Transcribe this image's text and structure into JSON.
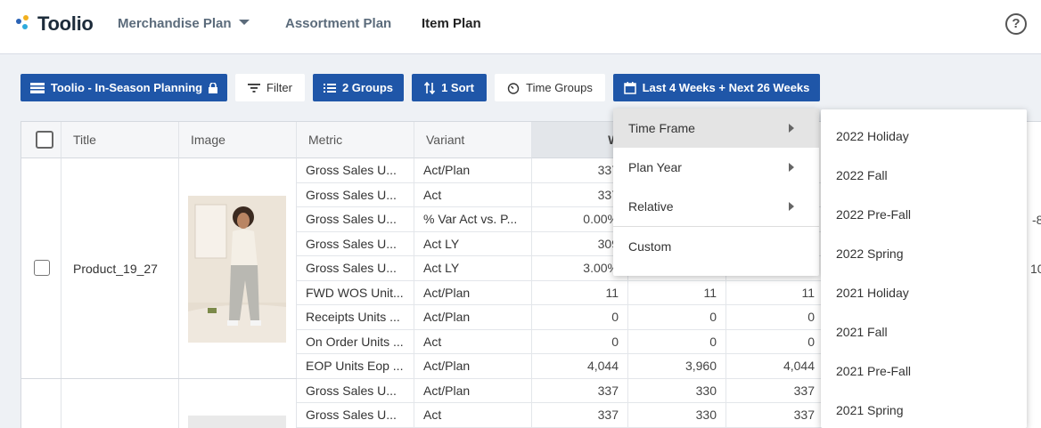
{
  "app": {
    "logo_text": "Toolio"
  },
  "nav": {
    "merchandise": "Merchandise Plan",
    "assortment": "Assortment Plan",
    "item": "Item Plan",
    "help": "?"
  },
  "toolbar": {
    "plan": "Toolio - In-Season Planning",
    "filter": "Filter",
    "groups": "2 Groups",
    "sort": "1 Sort",
    "time_groups": "Time Groups",
    "range": "Last 4 Weeks + Next 26 Weeks"
  },
  "grid": {
    "headers": {
      "title": "Title",
      "image": "Image",
      "metric": "Metric",
      "variant": "Variant",
      "week": "W10"
    },
    "product_title": "Product_19_27",
    "rows": [
      {
        "metric": "Gross Sales U...",
        "variant": "Act/Plan",
        "v1": "337",
        "v2": "",
        "v3": ""
      },
      {
        "metric": "Gross Sales U...",
        "variant": "Act",
        "v1": "337",
        "v2": "",
        "v3": ""
      },
      {
        "metric": "Gross Sales U...",
        "variant": "% Var Act vs. P...",
        "v1": "0.00%",
        "v2": "",
        "v3": ""
      },
      {
        "metric": "Gross Sales U...",
        "variant": "Act LY",
        "v1": "309",
        "v2": "",
        "v3": ""
      },
      {
        "metric": "Gross Sales U...",
        "variant": "Act LY",
        "v1": "3.00%",
        "v2": "",
        "v3": ""
      },
      {
        "metric": "FWD WOS Unit...",
        "variant": "Act/Plan",
        "v1": "11",
        "v2": "11",
        "v3": "11"
      },
      {
        "metric": "Receipts Units ...",
        "variant": "Act/Plan",
        "v1": "0",
        "v2": "0",
        "v3": "0"
      },
      {
        "metric": "On Order Units ...",
        "variant": "Act",
        "v1": "0",
        "v2": "0",
        "v3": "0"
      },
      {
        "metric": "EOP Units Eop ...",
        "variant": "Act/Plan",
        "v1": "4,044",
        "v2": "3,960",
        "v3": "4,044"
      },
      {
        "metric": "Gross Sales U...",
        "variant": "Act/Plan",
        "v1": "337",
        "v2": "330",
        "v3": "337"
      },
      {
        "metric": "Gross Sales U...",
        "variant": "Act",
        "v1": "337",
        "v2": "330",
        "v3": "337"
      }
    ],
    "edge_values": [
      "-8",
      "10"
    ]
  },
  "menu": {
    "items": [
      "Time Frame",
      "Plan Year",
      "Relative",
      "Custom"
    ]
  },
  "submenu": {
    "items": [
      "2022 Holiday",
      "2022 Fall",
      "2022 Pre-Fall",
      "2022 Spring",
      "2021 Holiday",
      "2021 Fall",
      "2021 Pre-Fall",
      "2021 Spring"
    ]
  }
}
